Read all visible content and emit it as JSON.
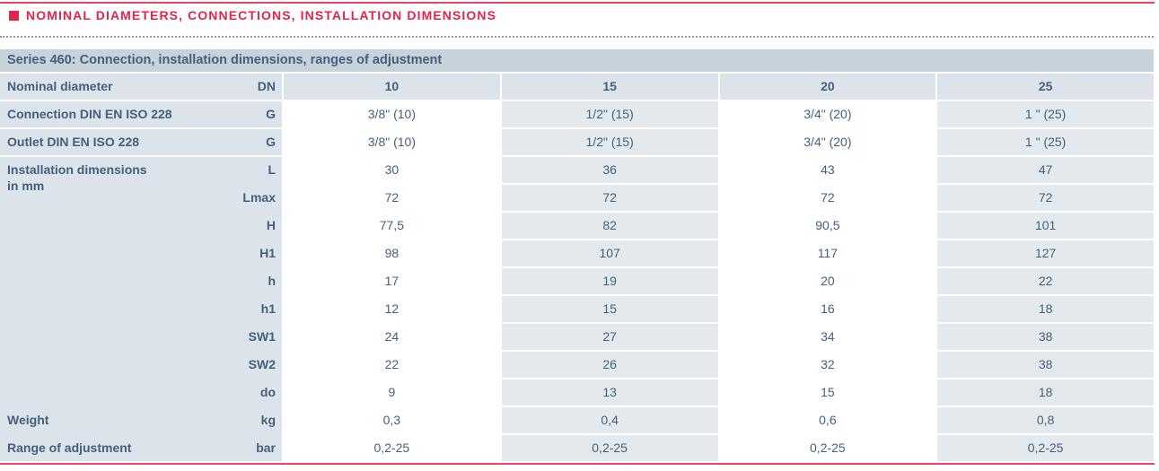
{
  "section": {
    "title": "NOMINAL DIAMETERS, CONNECTIONS, INSTALLATION DIMENSIONS"
  },
  "colors": {
    "accent": "#e2244c",
    "accent_line": "#ea4763",
    "text": "#44607b",
    "bg_series": "#c8d2db",
    "bg_left": "#dce3ea",
    "bg_col": "#e4e9ee"
  },
  "table": {
    "title": "Series 460: Connection, installation dimensions, ranges of adjustment",
    "dn_row": {
      "label": "Nominal diameter",
      "symbol": "DN",
      "values": [
        "10",
        "15",
        "20",
        "25"
      ]
    },
    "rows": [
      {
        "label": "Connection DIN EN ISO 228",
        "symbol": "G",
        "values": [
          "3/8\" (10)",
          "1/2\" (15)",
          "3/4\" (20)",
          "1 \" (25)"
        ]
      },
      {
        "label": "Outlet DIN EN ISO 228",
        "symbol": "G",
        "values": [
          "3/8\" (10)",
          "1/2\" (15)",
          "3/4\" (20)",
          "1 \" (25)"
        ]
      },
      {
        "label": "Installation dimensions",
        "label2": "in mm",
        "symbol": "L",
        "values": [
          "30",
          "36",
          "43",
          "47"
        ]
      },
      {
        "symbol": "Lmax",
        "values": [
          "72",
          "72",
          "72",
          "72"
        ]
      },
      {
        "symbol": "H",
        "values": [
          "77,5",
          "82",
          "90,5",
          "101"
        ]
      },
      {
        "symbol": "H1",
        "values": [
          "98",
          "107",
          "117",
          "127"
        ]
      },
      {
        "symbol": "h",
        "values": [
          "17",
          "19",
          "20",
          "22"
        ]
      },
      {
        "symbol": "h1",
        "values": [
          "12",
          "15",
          "16",
          "18"
        ]
      },
      {
        "symbol": "SW1",
        "values": [
          "24",
          "27",
          "34",
          "38"
        ]
      },
      {
        "symbol": "SW2",
        "values": [
          "22",
          "26",
          "32",
          "38"
        ]
      },
      {
        "symbol": "do",
        "values": [
          "9",
          "13",
          "15",
          "18"
        ]
      },
      {
        "label": "Weight",
        "symbol": "kg",
        "values": [
          "0,3",
          "0,4",
          "0,6",
          "0,8"
        ]
      },
      {
        "label": "Range of adjustment",
        "symbol": "bar",
        "values": [
          "0,2-25",
          "0,2-25",
          "0,2-25",
          "0,2-25"
        ]
      }
    ]
  }
}
